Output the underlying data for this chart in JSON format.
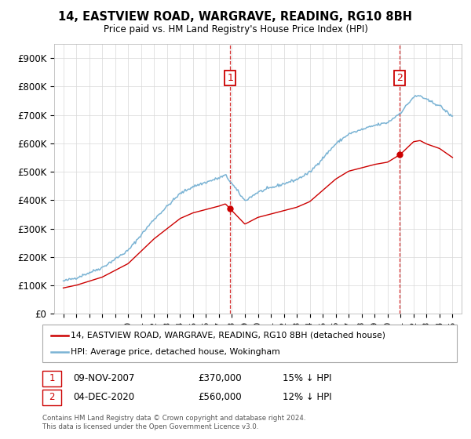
{
  "title": "14, EASTVIEW ROAD, WARGRAVE, READING, RG10 8BH",
  "subtitle": "Price paid vs. HM Land Registry's House Price Index (HPI)",
  "legend_label1": "14, EASTVIEW ROAD, WARGRAVE, READING, RG10 8BH (detached house)",
  "legend_label2": "HPI: Average price, detached house, Wokingham",
  "annotation1_label": "1",
  "annotation1_date": "09-NOV-2007",
  "annotation1_price": "£370,000",
  "annotation1_hpi": "15% ↓ HPI",
  "annotation2_label": "2",
  "annotation2_date": "04-DEC-2020",
  "annotation2_price": "£560,000",
  "annotation2_hpi": "12% ↓ HPI",
  "footnote": "Contains HM Land Registry data © Crown copyright and database right 2024.\nThis data is licensed under the Open Government Licence v3.0.",
  "color_red": "#cc0000",
  "color_blue": "#7ab3d4",
  "color_annotation": "#cc0000",
  "ylim": [
    0,
    950000
  ],
  "yticks": [
    0,
    100000,
    200000,
    300000,
    400000,
    500000,
    600000,
    700000,
    800000,
    900000
  ],
  "ytick_labels": [
    "£0",
    "£100K",
    "£200K",
    "£300K",
    "£400K",
    "£500K",
    "£600K",
    "£700K",
    "£800K",
    "£900K"
  ],
  "sale1_x": 2007.86,
  "sale1_y": 370000,
  "sale2_x": 2020.92,
  "sale2_y": 560000,
  "xlim_left": 1994.3,
  "xlim_right": 2025.7
}
